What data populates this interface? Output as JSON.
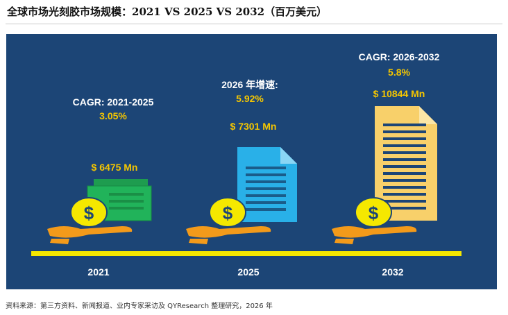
{
  "title": "全球市场光刻胶市场规模：2021 VS 2025 VS 2032（百万美元）",
  "source": "资料来源：第三方资料、新闻报道、业内专家采访及 QYResearch 整理研究，2026 年",
  "colors": {
    "background_panel": "#1c4576",
    "baseline": "#f5e800",
    "label_highlight": "#f5c600",
    "bill_2021": "#21b35a",
    "doc_2025": "#29b0e8",
    "doc_2032": "#f8d06a",
    "coin": "#f5e800",
    "hand": "#f39a1a"
  },
  "chart_data": {
    "type": "bar",
    "categories": [
      "2021",
      "2025",
      "2032"
    ],
    "values": [
      6475,
      7301,
      10844
    ],
    "value_labels": [
      "$ 6475 Mn",
      "$ 7301 Mn",
      "$ 10844 Mn"
    ],
    "annotations": [
      {
        "label": "CAGR: 2021-2025",
        "rate": "3.05%"
      },
      {
        "label": "2026 年增速:",
        "rate": "5.92%"
      },
      {
        "label": "CAGR: 2026-2032",
        "rate": "5.8%"
      }
    ],
    "icons": [
      "money-bills-icon",
      "document-icon",
      "document-icon"
    ],
    "grid": false
  }
}
